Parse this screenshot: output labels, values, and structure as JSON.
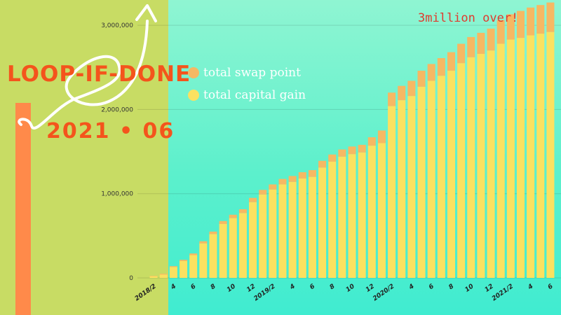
{
  "brand": {
    "title": "LOOP-IF-DONE",
    "date": "2021 • 06"
  },
  "annotation": "3million over!",
  "colors": {
    "swap": "#f6b863",
    "capital": "#fbe160",
    "brand": "#f4541c",
    "left_bg": "#c8dc64",
    "orange_bar": "#ff8a4a"
  },
  "chart_data": {
    "type": "bar",
    "stacked": true,
    "title": "",
    "xlabel": "",
    "ylabel": "",
    "ylim": [
      0,
      3200000
    ],
    "y_ticks": [
      0,
      1000000,
      2000000,
      3000000
    ],
    "y_tick_labels": [
      "0",
      "1,000,000",
      "2,000,000",
      "3,000,000"
    ],
    "legend_placement": "top-left",
    "x_tick_labels": [
      {
        "label": "2018/2",
        "index": 0
      },
      {
        "label": "4",
        "index": 2
      },
      {
        "label": "6",
        "index": 4
      },
      {
        "label": "8",
        "index": 6
      },
      {
        "label": "10",
        "index": 8
      },
      {
        "label": "12",
        "index": 10
      },
      {
        "label": "2019/2",
        "index": 12
      },
      {
        "label": "4",
        "index": 14
      },
      {
        "label": "6",
        "index": 16
      },
      {
        "label": "8",
        "index": 18
      },
      {
        "label": "10",
        "index": 20
      },
      {
        "label": "12",
        "index": 22
      },
      {
        "label": "2020/2",
        "index": 24
      },
      {
        "label": "4",
        "index": 26
      },
      {
        "label": "6",
        "index": 28
      },
      {
        "label": "8",
        "index": 30
      },
      {
        "label": "10",
        "index": 32
      },
      {
        "label": "12",
        "index": 34
      },
      {
        "label": "2021/2",
        "index": 36
      },
      {
        "label": "4",
        "index": 38
      },
      {
        "label": "6",
        "index": 40
      }
    ],
    "categories": [
      "2018/2",
      "2018/3",
      "2018/4",
      "2018/5",
      "2018/6",
      "2018/7",
      "2018/8",
      "2018/9",
      "2018/10",
      "2018/11",
      "2018/12",
      "2019/1",
      "2019/2",
      "2019/3",
      "2019/4",
      "2019/5",
      "2019/6",
      "2019/7",
      "2019/8",
      "2019/9",
      "2019/10",
      "2019/11",
      "2019/12",
      "2020/1",
      "2020/2",
      "2020/3",
      "2020/4",
      "2020/5",
      "2020/6",
      "2020/7",
      "2020/8",
      "2020/9",
      "2020/10",
      "2020/11",
      "2020/12",
      "2021/1",
      "2021/2",
      "2021/3",
      "2021/4",
      "2021/5",
      "2021/6"
    ],
    "series": [
      {
        "name": "total capital gain",
        "values": [
          20000,
          40000,
          130000,
          200000,
          270000,
          410000,
          520000,
          640000,
          710000,
          770000,
          900000,
          990000,
          1050000,
          1110000,
          1140000,
          1180000,
          1200000,
          1310000,
          1380000,
          1440000,
          1470000,
          1490000,
          1570000,
          1600000,
          2040000,
          2110000,
          2160000,
          2270000,
          2340000,
          2400000,
          2460000,
          2550000,
          2620000,
          2660000,
          2700000,
          2780000,
          2830000,
          2850000,
          2880000,
          2900000,
          2920000
        ]
      },
      {
        "name": "total swap point",
        "values": [
          5000,
          10000,
          10000,
          15000,
          20000,
          25000,
          30000,
          35000,
          40000,
          45000,
          50000,
          55000,
          60000,
          65000,
          70000,
          75000,
          80000,
          80000,
          85000,
          85000,
          90000,
          90000,
          100000,
          150000,
          160000,
          170000,
          180000,
          190000,
          200000,
          210000,
          220000,
          230000,
          240000,
          250000,
          260000,
          280000,
          300000,
          320000,
          330000,
          340000,
          350000
        ]
      }
    ]
  }
}
